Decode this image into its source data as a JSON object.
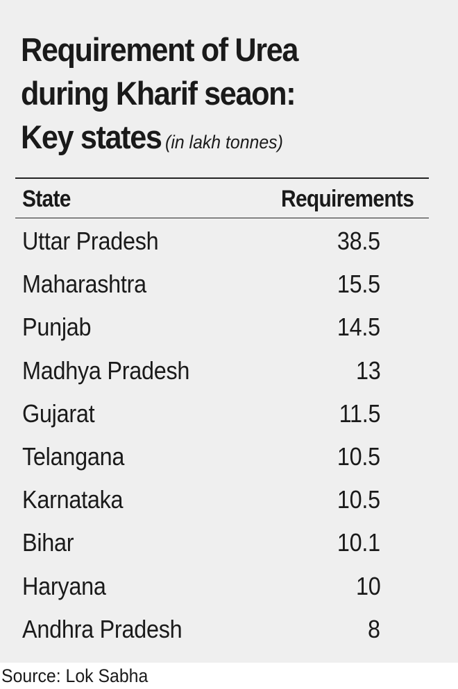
{
  "chart_data": {
    "type": "table",
    "title_lines": [
      "Requirement of Urea",
      "during Kharif seaon:",
      "Key states"
    ],
    "unit_note": "(in lakh tonnes)",
    "columns": [
      "State",
      "Requirements"
    ],
    "rows": [
      {
        "state": "Uttar Pradesh",
        "value": "38.5"
      },
      {
        "state": "Maharashtra",
        "value": "15.5"
      },
      {
        "state": "Punjab",
        "value": "14.5"
      },
      {
        "state": "Madhya Pradesh",
        "value": "13"
      },
      {
        "state": "Gujarat",
        "value": "11.5"
      },
      {
        "state": "Telangana",
        "value": "10.5"
      },
      {
        "state": "Karnataka",
        "value": "10.5"
      },
      {
        "state": "Bihar",
        "value": "10.1"
      },
      {
        "state": "Haryana",
        "value": "10"
      },
      {
        "state": "Andhra Pradesh",
        "value": "8"
      }
    ],
    "source": "Source: Lok Sabha"
  },
  "colors": {
    "panel_background": "#efefef",
    "text": "#1a1a1a",
    "rule": "#222222"
  }
}
